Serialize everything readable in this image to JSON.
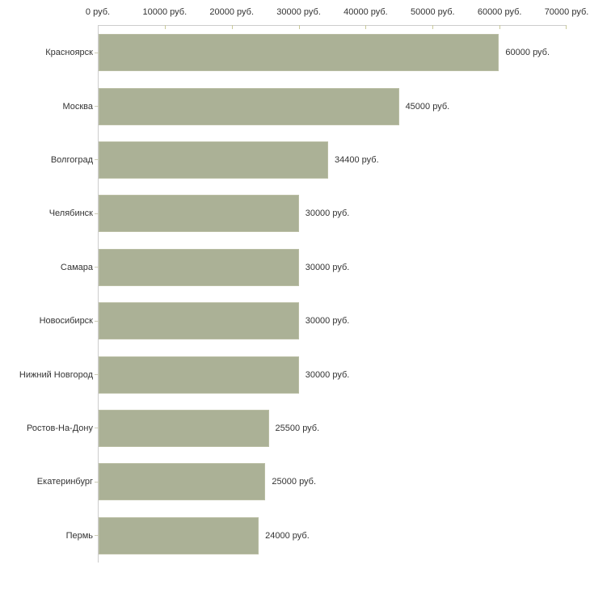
{
  "chart_data": {
    "type": "bar",
    "orientation": "horizontal",
    "title": "",
    "xlabel": "",
    "ylabel": "",
    "unit": "руб.",
    "categories": [
      "Красноярск",
      "Москва",
      "Волгоград",
      "Челябинск",
      "Самара",
      "Новосибирск",
      "Нижний Новгород",
      "Ростов-На-Дону",
      "Екатеринбург",
      "Пермь"
    ],
    "values": [
      60000,
      45000,
      34400,
      30000,
      30000,
      30000,
      30000,
      25500,
      25000,
      24000
    ],
    "value_labels": [
      "60000 руб.",
      "45000 руб.",
      "34400 руб.",
      "30000 руб.",
      "30000 руб.",
      "30000 руб.",
      "30000 руб.",
      "25500 руб.",
      "25000 руб.",
      "24000 руб."
    ],
    "x_ticks": [
      "0 руб.",
      "10000 руб.",
      "20000 руб.",
      "30000 руб.",
      "40000 руб.",
      "50000 руб.",
      "60000 руб.",
      "70000 руб."
    ],
    "xlim": [
      0,
      70000
    ],
    "grid": false,
    "legend": false,
    "colors": {
      "bar": "#abb196",
      "bar_border": "#b9bda3",
      "axis_line": "#cccccc",
      "axis_tick": "#c9c99a",
      "text": "#333333",
      "background": "#ffffff"
    }
  }
}
